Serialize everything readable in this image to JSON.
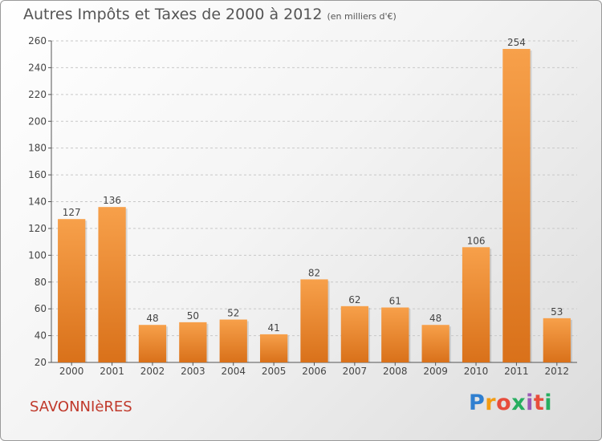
{
  "title": "Autres Impôts et Taxes de 2000 à 2012",
  "subtitle": "(en milliers d'€)",
  "city": "SAVONNIèRES",
  "brand": [
    "P",
    "r",
    "o",
    "x",
    "i",
    "t",
    "i"
  ],
  "colors": {
    "bar_light": "#f7a04a",
    "bar_dark": "#d9711a",
    "grid": "#c8c8c8",
    "axis": "#555555"
  },
  "chart_data": {
    "type": "bar",
    "title": "Autres Impôts et Taxes de 2000 à 2012",
    "categories": [
      "2000",
      "2001",
      "2002",
      "2003",
      "2004",
      "2005",
      "2006",
      "2007",
      "2008",
      "2009",
      "2010",
      "2011",
      "2012"
    ],
    "values": [
      127,
      136,
      48,
      50,
      52,
      41,
      82,
      62,
      61,
      48,
      106,
      254,
      53
    ],
    "ylim": [
      20,
      260
    ],
    "yticks": [
      20,
      40,
      60,
      80,
      100,
      120,
      140,
      160,
      180,
      200,
      220,
      240,
      260
    ],
    "grid": true,
    "xlabel": "",
    "ylabel": ""
  }
}
